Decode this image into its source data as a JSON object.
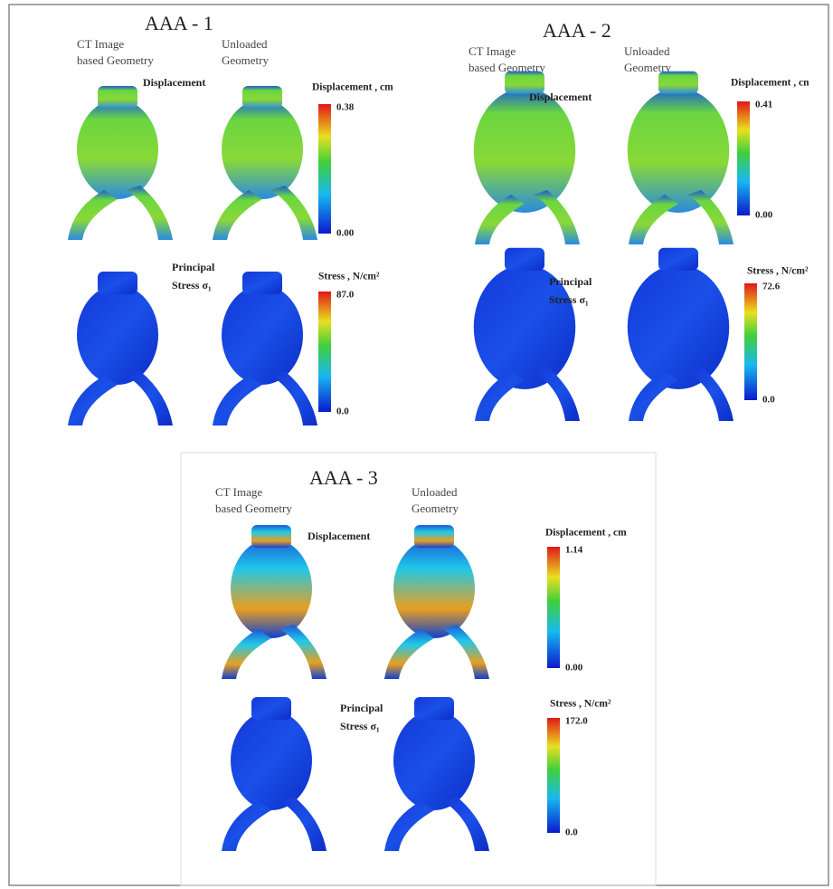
{
  "panels": [
    {
      "title": "AAA - 1",
      "columns": [
        [
          "CT Image",
          "based Geometry"
        ],
        [
          "Unloaded",
          "Geometry"
        ]
      ],
      "rows": [
        {
          "label": [
            "Displacement"
          ],
          "colorbar": {
            "title": "Displacement , cm",
            "max": "0.38",
            "min": "0.00"
          }
        },
        {
          "label": [
            "Principal",
            "Stress σ₁"
          ],
          "colorbar": {
            "title": "Stress , N/cm²",
            "max": "87.0",
            "min": "0.0"
          }
        }
      ]
    },
    {
      "title": "AAA - 2",
      "columns": [
        [
          "CT Image",
          "based Geometry"
        ],
        [
          "Unloaded",
          "Geometry"
        ]
      ],
      "rows": [
        {
          "label": [
            "Displacement"
          ],
          "colorbar": {
            "title": "Displacement , cn",
            "max": "0.41",
            "min": "0.00"
          }
        },
        {
          "label": [
            "Principal",
            "Stress σ₁"
          ],
          "colorbar": {
            "title": "Stress , N/cm²",
            "max": "72.6",
            "min": "0.0"
          }
        }
      ]
    },
    {
      "title": "AAA - 3",
      "columns": [
        [
          "CT Image",
          "based Geometry"
        ],
        [
          "Unloaded",
          "Geometry"
        ]
      ],
      "rows": [
        {
          "label": [
            "Displacement"
          ],
          "colorbar": {
            "title": "Displacement , cm",
            "max": "1.14",
            "min": "0.00"
          }
        },
        {
          "label": [
            "Principal",
            "Stress σ₁"
          ],
          "colorbar": {
            "title": "Stress , N/cm²",
            "max": "172.0",
            "min": "0.0"
          }
        }
      ]
    }
  ]
}
